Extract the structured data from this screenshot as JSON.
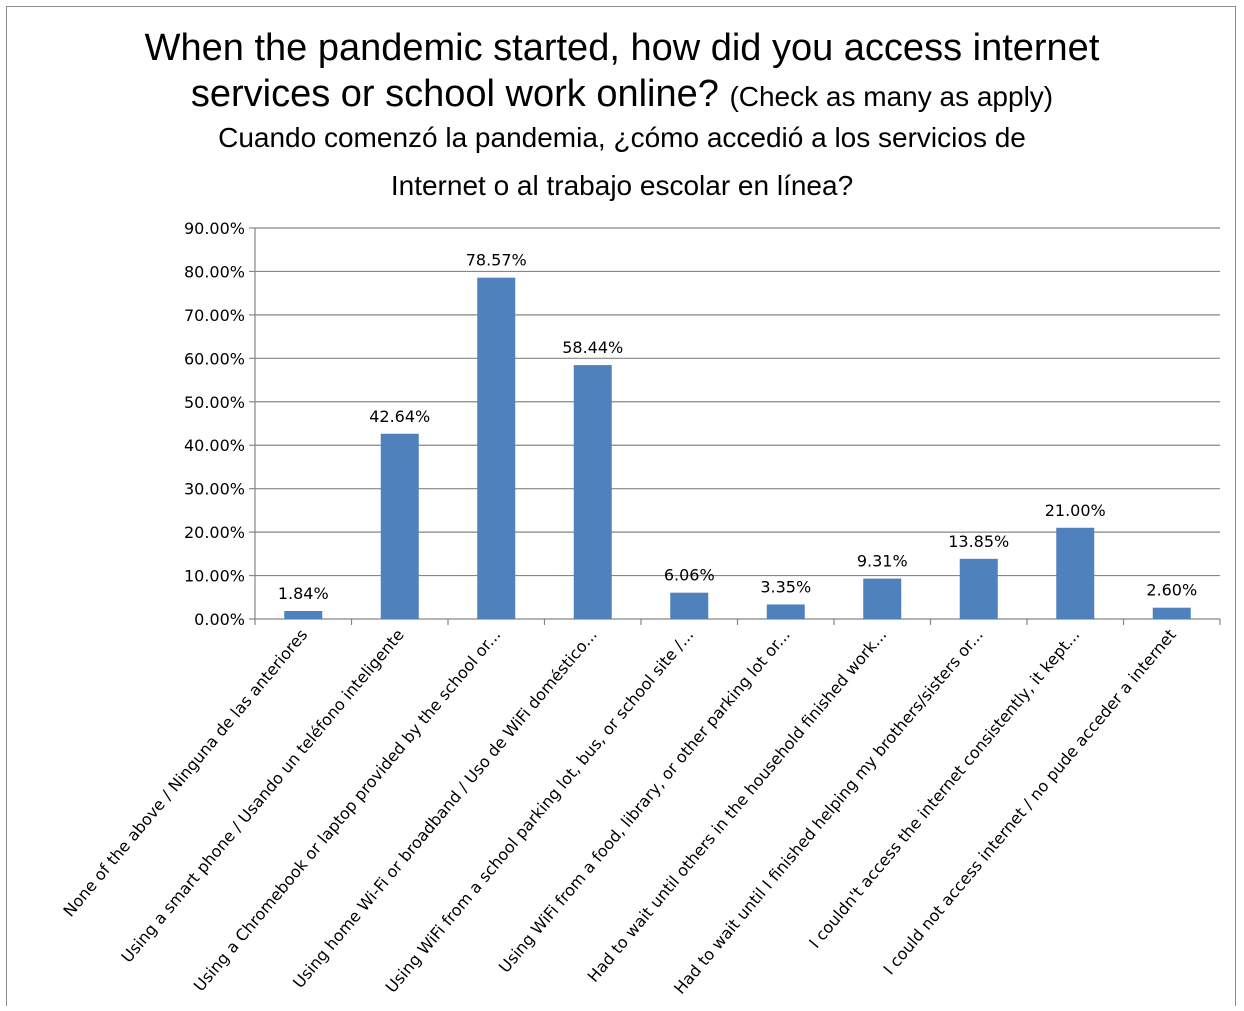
{
  "chart_data": {
    "type": "bar",
    "title_line1": "When the pandemic started, how did you access internet",
    "title_line2_main": "services or school work online?",
    "title_line2_note": "(Check as many as apply)",
    "subtitle_line1": "Cuando comenzó la pandemia, ¿cómo accedió a los servicios de",
    "subtitle_line2": "Internet o al trabajo escolar en línea?",
    "categories": [
      "None of the above / Ninguna de las anteriores",
      "Using a smart phone / Usando un teléfono inteligente",
      "Using a Chromebook or laptop provided by the school or...",
      "Using home Wi-Fi or broadband / Uso de WiFi doméstico...",
      "Using WiFi from a school parking lot, bus, or school site /...",
      "Using WiFi from a food, library, or other parking lot or...",
      "Had to wait until others in the household finished work...",
      "Had to wait until I finished helping my brothers/sisters or...",
      "I couldn't access the internet consistently, it kept...",
      "I could not access internet / no pude acceder a internet"
    ],
    "values": [
      1.84,
      42.64,
      78.57,
      58.44,
      6.06,
      3.35,
      9.31,
      13.85,
      21.0,
      2.6
    ],
    "value_labels": [
      "1.84%",
      "42.64%",
      "78.57%",
      "58.44%",
      "6.06%",
      "3.35%",
      "9.31%",
      "13.85%",
      "21.00%",
      "2.60%"
    ],
    "y_ticks": [
      "0.00%",
      "10.00%",
      "20.00%",
      "30.00%",
      "40.00%",
      "50.00%",
      "60.00%",
      "70.00%",
      "80.00%",
      "90.00%"
    ],
    "ylim": [
      0,
      90
    ],
    "grid": true,
    "bar_color": "#4f81bd",
    "xlabel": "",
    "ylabel": ""
  }
}
